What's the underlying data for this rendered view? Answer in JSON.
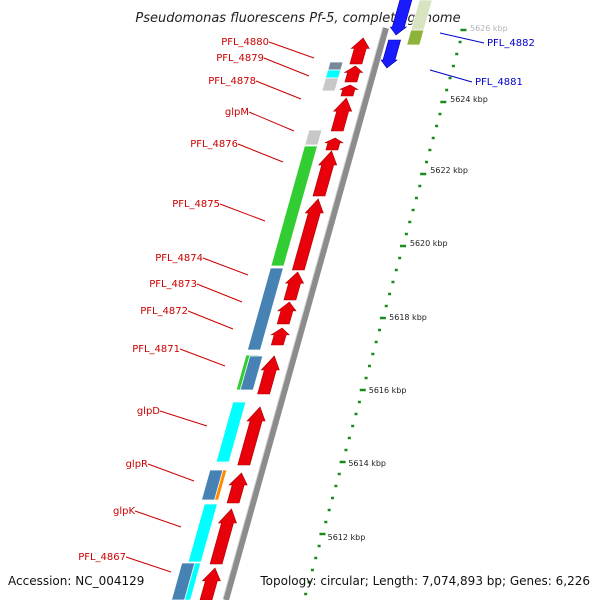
{
  "title": "Pseudomonas fluorescens Pf-5, complete genome",
  "footer": {
    "accession": "Accession: NC_004129",
    "summary": "Topology: circular; Length: 7,074,893 bp; Genes: 6,226"
  },
  "colors": {
    "reverse_strand": "#e8000b",
    "forward_strand": "#1a1aff",
    "backbone": "#8c8c8c",
    "label_reverse": "#cc0000",
    "label_forward": "#0000cc",
    "tick": "#1a8a1a"
  },
  "scale_labels": [
    "5612 kbp",
    "5614 kbp",
    "5616 kbp",
    "5618 kbp",
    "5620 kbp",
    "5622 kbp",
    "5624 kbp",
    "5626 kbp"
  ],
  "genes": [
    {
      "name": "PFL_4882",
      "strand": "forward"
    },
    {
      "name": "PFL_4881",
      "strand": "forward"
    },
    {
      "name": "PFL_4880",
      "strand": "reverse"
    },
    {
      "name": "PFL_4879",
      "strand": "reverse"
    },
    {
      "name": "PFL_4878",
      "strand": "reverse"
    },
    {
      "name": "glpM",
      "strand": "reverse"
    },
    {
      "name": "PFL_4876",
      "strand": "reverse"
    },
    {
      "name": "PFL_4875",
      "strand": "reverse"
    },
    {
      "name": "PFL_4874",
      "strand": "reverse"
    },
    {
      "name": "PFL_4873",
      "strand": "reverse"
    },
    {
      "name": "PFL_4872",
      "strand": "reverse"
    },
    {
      "name": "PFL_4871",
      "strand": "reverse"
    },
    {
      "name": "glpD",
      "strand": "reverse"
    },
    {
      "name": "glpR",
      "strand": "reverse"
    },
    {
      "name": "glpK",
      "strand": "reverse"
    },
    {
      "name": "PFL_4867",
      "strand": "reverse"
    }
  ],
  "cog_colors": [
    "#32cd32",
    "#4682b4",
    "#00ffff",
    "#ff8c00",
    "#c8c8c8",
    "#778899",
    "#8db33a",
    "#1a1aff"
  ]
}
